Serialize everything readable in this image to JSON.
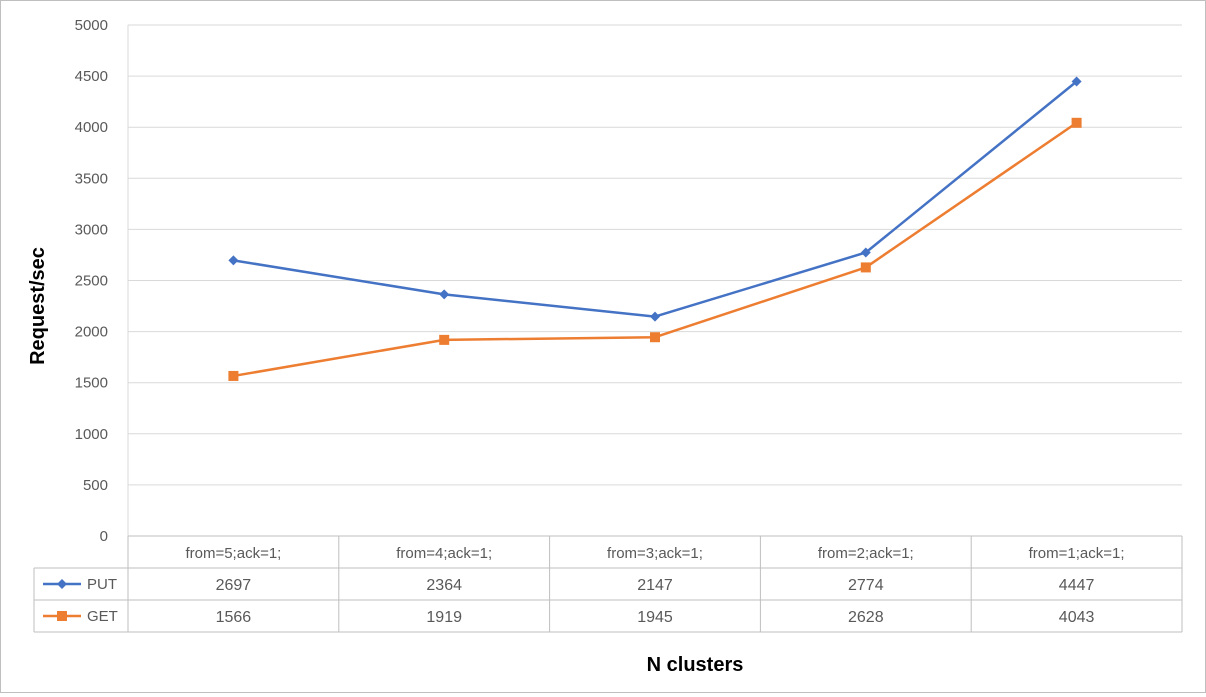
{
  "chart_data": {
    "type": "line",
    "title": "",
    "xlabel": "N clusters",
    "ylabel": "Request/sec",
    "ylim": [
      0,
      5000
    ],
    "yticks": [
      0,
      500,
      1000,
      1500,
      2000,
      2500,
      3000,
      3500,
      4000,
      4500,
      5000
    ],
    "grid": true,
    "legend": "data-table",
    "categories": [
      "from=5;ack=1;",
      "from=4;ack=1;",
      "from=3;ack=1;",
      "from=2;ack=1;",
      "from=1;ack=1;"
    ],
    "series": [
      {
        "name": "PUT",
        "values": [
          2697,
          2364,
          2147,
          2774,
          4447
        ],
        "color": "#4472c4",
        "marker": "diamond"
      },
      {
        "name": "GET",
        "values": [
          1566,
          1919,
          1945,
          2628,
          4043
        ],
        "color": "#ed7d31",
        "marker": "square"
      }
    ]
  }
}
